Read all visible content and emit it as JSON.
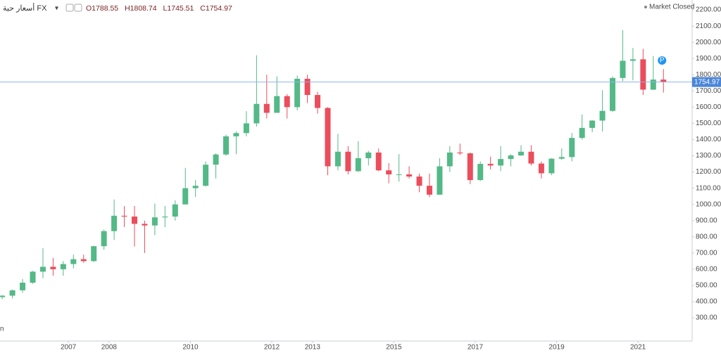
{
  "chart_data": {
    "type": "candlestick",
    "symbol": "أسعار حية FX",
    "ohlc_header": {
      "open_label": "O",
      "open": 1788.55,
      "high_label": "H",
      "high": 1808.74,
      "low_label": "L",
      "low": 1745.51,
      "close_label": "C",
      "close": 1754.97
    },
    "status": "Market Closed",
    "last_price": 1754.97,
    "marker_label": "P",
    "left_fragment": "n",
    "up_color": "#53b987",
    "down_color": "#eb4d5c",
    "grid": false,
    "xlim": [
      2005.32,
      2022.33
    ],
    "xticks": [
      2007,
      2008,
      2010,
      2012,
      2013,
      2015,
      2017,
      2019,
      2021
    ],
    "ylim": [
      157,
      2261
    ],
    "yticks": [
      {
        "value": 300,
        "label": "300.00"
      },
      {
        "value": 400,
        "label": "400.00"
      },
      {
        "value": 500,
        "label": "500.00"
      },
      {
        "value": 600,
        "label": "600.00"
      },
      {
        "value": 700,
        "label": "700.00"
      },
      {
        "value": 800,
        "label": "800.00"
      },
      {
        "value": 900,
        "label": "900.00"
      },
      {
        "value": 1000,
        "label": "1000.00"
      },
      {
        "value": 1100,
        "label": "1100.00"
      },
      {
        "value": 1200,
        "label": "1200.00"
      },
      {
        "value": 1300,
        "label": "1300.00"
      },
      {
        "value": 1400,
        "label": "1400.00"
      },
      {
        "value": 1500,
        "label": "1500.00"
      },
      {
        "value": 1600,
        "label": "1600.00"
      },
      {
        "value": 1700,
        "label": "1700.00"
      },
      {
        "value": 1800,
        "label": "1800.00"
      },
      {
        "value": 1900,
        "label": "1900.00"
      },
      {
        "value": 2000,
        "label": "2000.00"
      },
      {
        "value": 2100,
        "label": "2100.00"
      },
      {
        "value": 2200,
        "label": "2200.00"
      }
    ],
    "x": [
      2005.375,
      2005.625,
      2005.875,
      2006.125,
      2006.375,
      2006.625,
      2006.875,
      2007.125,
      2007.375,
      2007.625,
      2007.875,
      2008.125,
      2008.375,
      2008.625,
      2008.875,
      2009.125,
      2009.375,
      2009.625,
      2009.875,
      2010.125,
      2010.375,
      2010.625,
      2010.875,
      2011.125,
      2011.375,
      2011.625,
      2011.875,
      2012.125,
      2012.375,
      2012.625,
      2012.875,
      2013.125,
      2013.375,
      2013.625,
      2013.875,
      2014.125,
      2014.375,
      2014.625,
      2014.875,
      2015.125,
      2015.375,
      2015.625,
      2015.875,
      2016.125,
      2016.375,
      2016.625,
      2016.875,
      2017.125,
      2017.375,
      2017.625,
      2017.875,
      2018.125,
      2018.375,
      2018.625,
      2018.875,
      2019.125,
      2019.375,
      2019.625,
      2019.875,
      2020.125,
      2020.375,
      2020.625,
      2020.875,
      2021.125,
      2021.375,
      2021.625
    ],
    "open": [
      428,
      437,
      470,
      517,
      585,
      615,
      600,
      632,
      662,
      650,
      742,
      835,
      930,
      925,
      880,
      870,
      920,
      925,
      1000,
      1100,
      1115,
      1245,
      1308,
      1420,
      1440,
      1500,
      1620,
      1565,
      1668,
      1600,
      1775,
      1675,
      1595,
      1235,
      1325,
      1205,
      1285,
      1320,
      1210,
      1185,
      1185,
      1172,
      1115,
      1060,
      1235,
      1320,
      1315,
      1150,
      1250,
      1240,
      1280,
      1302,
      1325,
      1252,
      1192,
      1282,
      1292,
      1410,
      1472,
      1517,
      1577,
      1780,
      1886,
      1895,
      1708,
      1770
    ],
    "high": [
      440,
      475,
      540,
      590,
      730,
      670,
      650,
      690,
      690,
      745,
      845,
      1030,
      990,
      990,
      900,
      1005,
      990,
      1025,
      1225,
      1150,
      1265,
      1315,
      1430,
      1450,
      1575,
      1920,
      1800,
      1790,
      1680,
      1795,
      1800,
      1695,
      1600,
      1435,
      1360,
      1390,
      1330,
      1345,
      1255,
      1310,
      1235,
      1190,
      1190,
      1285,
      1360,
      1375,
      1320,
      1265,
      1295,
      1360,
      1310,
      1365,
      1365,
      1265,
      1285,
      1345,
      1440,
      1555,
      1520,
      1705,
      1790,
      2075,
      1965,
      1960,
      1915,
      1835
    ],
    "low": [
      415,
      420,
      455,
      510,
      545,
      560,
      560,
      605,
      640,
      645,
      720,
      780,
      860,
      740,
      700,
      810,
      860,
      900,
      1000,
      1045,
      1110,
      1160,
      1300,
      1310,
      1420,
      1480,
      1530,
      1565,
      1530,
      1580,
      1625,
      1560,
      1180,
      1210,
      1185,
      1200,
      1240,
      1205,
      1130,
      1140,
      1160,
      1075,
      1045,
      1060,
      1200,
      1305,
      1125,
      1145,
      1215,
      1205,
      1235,
      1300,
      1240,
      1160,
      1180,
      1275,
      1265,
      1400,
      1445,
      1450,
      1570,
      1760,
      1765,
      1675,
      1705,
      1690
    ],
    "close": [
      437,
      470,
      517,
      585,
      615,
      600,
      632,
      662,
      650,
      742,
      835,
      930,
      925,
      880,
      870,
      920,
      925,
      1000,
      1100,
      1115,
      1245,
      1308,
      1420,
      1440,
      1500,
      1620,
      1565,
      1668,
      1600,
      1775,
      1675,
      1595,
      1235,
      1325,
      1205,
      1285,
      1320,
      1210,
      1185,
      1185,
      1172,
      1115,
      1060,
      1235,
      1320,
      1315,
      1150,
      1250,
      1240,
      1280,
      1302,
      1325,
      1252,
      1192,
      1282,
      1292,
      1410,
      1472,
      1517,
      1577,
      1780,
      1886,
      1895,
      1708,
      1770,
      1755
    ]
  }
}
